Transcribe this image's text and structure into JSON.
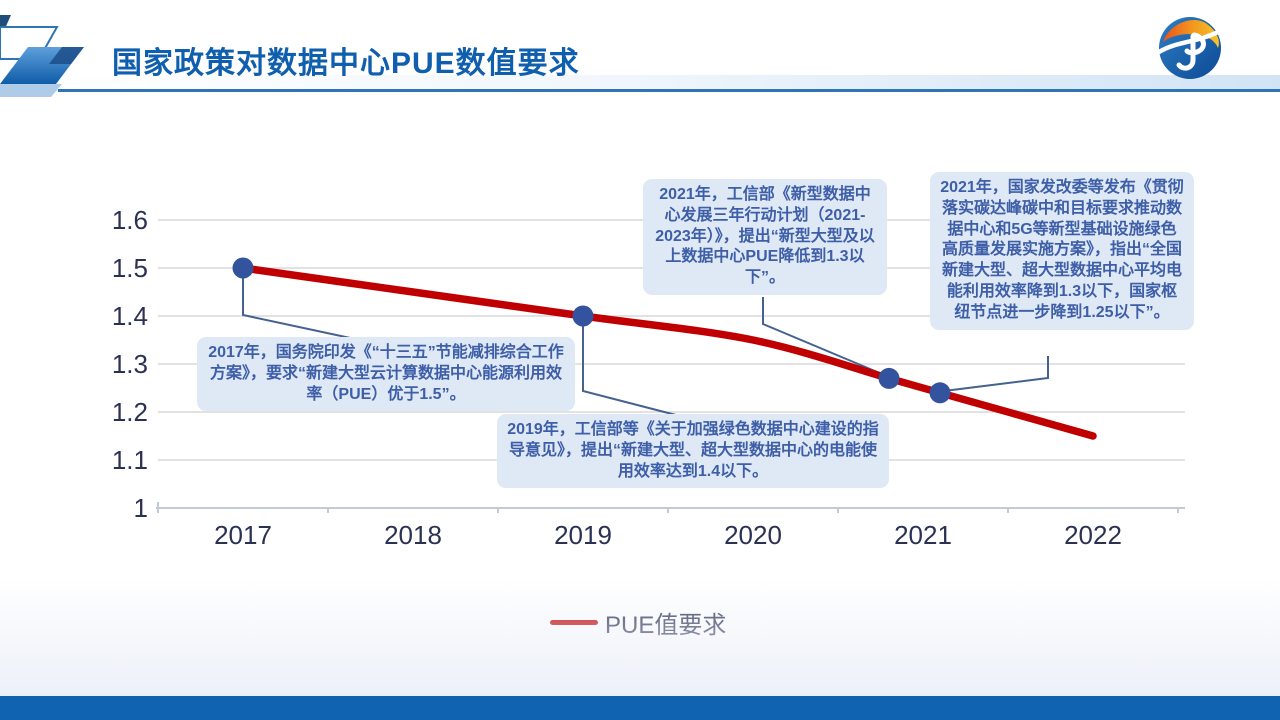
{
  "header": {
    "title": "国家政策对数据中心PUE数值要求"
  },
  "chart_data": {
    "type": "line",
    "title": "",
    "xlabel": "",
    "ylabel": "",
    "x_ticks": [
      "2017",
      "2018",
      "2019",
      "2020",
      "2021",
      "2022"
    ],
    "y_ticks": [
      "1.6",
      "1.5",
      "1.4",
      "1.3",
      "1.2",
      "1.1",
      "1"
    ],
    "ylim": [
      1.0,
      1.6
    ],
    "xlim": [
      2016.5,
      2022.5
    ],
    "grid": true,
    "legend_position": "bottom",
    "series": [
      {
        "name": "PUE值要求",
        "color": "#C00000",
        "marker_color": "#33539E",
        "points": [
          {
            "x": 2017,
            "y": 1.5,
            "marker": true
          },
          {
            "x": 2018,
            "y": 1.45,
            "marker": false
          },
          {
            "x": 2019,
            "y": 1.4,
            "marker": true
          },
          {
            "x": 2020,
            "y": 1.35,
            "marker": false
          },
          {
            "x": 2020.8,
            "y": 1.27,
            "marker": true
          },
          {
            "x": 2021.1,
            "y": 1.24,
            "marker": true
          },
          {
            "x": 2022,
            "y": 1.15,
            "marker": false
          }
        ]
      }
    ],
    "annotations": [
      {
        "year": "2017",
        "attached_point": {
          "x": 2017,
          "y": 1.5
        },
        "text": "2017年，国务院印发《“十三五”节能减排综合工作方案》，要求“新建大型云计算数据中心能源利用效率（PUE）优于1.5”。"
      },
      {
        "year": "2019",
        "attached_point": {
          "x": 2019,
          "y": 1.4
        },
        "text": "2019年，工信部等《关于加强绿色数据中心建设的指导意见》，提出“新建大型、超大型数据中心的电能使用效率达到1.4以下。"
      },
      {
        "year": "2021",
        "attached_point": {
          "x": 2020.8,
          "y": 1.27
        },
        "text": "2021年，工信部《新型数据中心发展三年行动计划（2021-2023年）》，提出“新型大型及以上数据中心PUE降低到1.3以下”。"
      },
      {
        "year": "2021",
        "attached_point": {
          "x": 2021.1,
          "y": 1.24
        },
        "text": "2021年，国家发改委等发布《贯彻落实碳达峰碳中和目标要求推动数据中心和5G等新型基础设施绿色高质量发展实施方案》，指出“全国新建大型、超大型数据中心平均电能利用效率降到1.3以下，国家枢纽节点进一步降到1.25以下”。"
      }
    ],
    "legend": [
      "PUE值要求"
    ]
  }
}
